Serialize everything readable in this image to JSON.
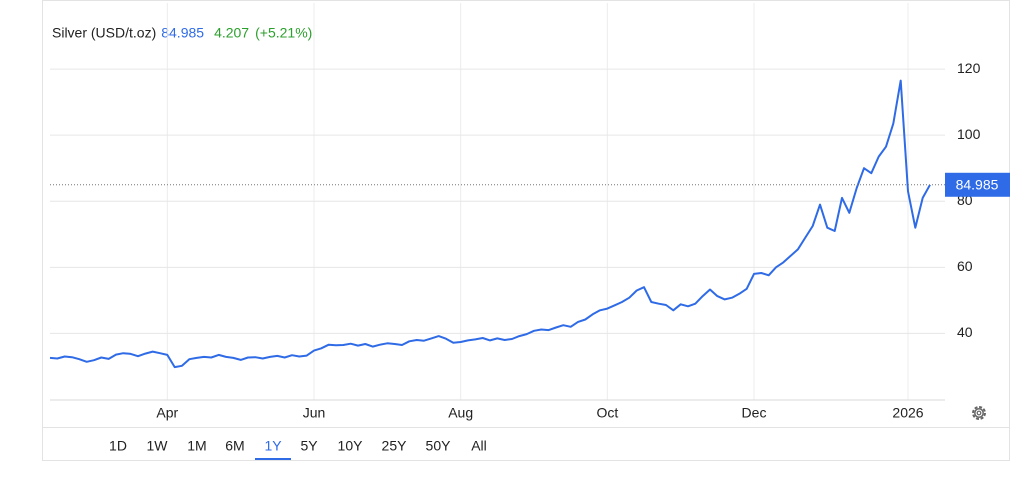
{
  "chart_data": {
    "type": "line",
    "title": "Silver (USD/t.oz)",
    "change": 4.207,
    "change_label": "(+5.21%)",
    "categories": [
      null,
      null,
      null,
      null,
      null,
      null,
      null,
      null,
      null,
      null,
      null,
      null,
      null,
      null,
      null,
      null,
      "Apr",
      null,
      null,
      null,
      null,
      null,
      null,
      null,
      null,
      null,
      null,
      null,
      null,
      null,
      null,
      null,
      null,
      null,
      null,
      null,
      "Jun",
      null,
      null,
      null,
      null,
      null,
      null,
      null,
      null,
      null,
      null,
      null,
      null,
      null,
      null,
      null,
      null,
      null,
      null,
      null,
      "Aug",
      null,
      null,
      null,
      null,
      null,
      null,
      null,
      null,
      null,
      null,
      null,
      null,
      null,
      null,
      null,
      null,
      null,
      null,
      null,
      "Oct",
      null,
      null,
      null,
      null,
      null,
      null,
      null,
      null,
      null,
      null,
      null,
      null,
      null,
      null,
      null,
      null,
      null,
      null,
      null,
      "Dec",
      null,
      null,
      null,
      null,
      null,
      null,
      null,
      null,
      null,
      null,
      null,
      null,
      null,
      null,
      null,
      null,
      null,
      null,
      null,
      null,
      "2026",
      null,
      null,
      null
    ],
    "series": [
      {
        "name": "Silver",
        "color": "#2f6be6",
        "values": [
          32.6,
          32.4,
          33.0,
          32.8,
          32.2,
          31.4,
          31.9,
          32.7,
          32.3,
          33.6,
          34.0,
          33.8,
          33.1,
          33.9,
          34.5,
          34.0,
          33.5,
          29.8,
          30.2,
          32.2,
          32.6,
          32.9,
          32.7,
          33.5,
          32.9,
          32.6,
          32.0,
          32.7,
          32.8,
          32.4,
          32.9,
          33.2,
          32.7,
          33.4,
          33.0,
          33.3,
          34.8,
          35.5,
          36.6,
          36.4,
          36.5,
          36.9,
          36.3,
          36.8,
          36.0,
          36.6,
          37.0,
          36.8,
          36.5,
          37.6,
          38.0,
          37.8,
          38.5,
          39.2,
          38.4,
          37.2,
          37.4,
          37.9,
          38.2,
          38.6,
          37.9,
          38.5,
          38.0,
          38.3,
          39.2,
          39.8,
          40.8,
          41.2,
          41.0,
          41.8,
          42.5,
          42.0,
          43.5,
          44.2,
          45.8,
          47.0,
          47.5,
          48.5,
          49.5,
          50.8,
          53.0,
          54.0,
          49.5,
          49.0,
          48.6,
          47.0,
          48.8,
          48.2,
          49.0,
          51.3,
          53.3,
          51.3,
          50.3,
          50.8,
          52.0,
          53.5,
          58.0,
          58.3,
          57.6,
          60.0,
          61.5,
          63.5,
          65.5,
          69.0,
          72.5,
          79.0,
          72.0,
          71.0,
          81.0,
          76.5,
          84.0,
          90.0,
          88.5,
          93.5,
          96.5,
          103.5,
          116.5,
          83.0,
          72.0,
          81.0,
          84.985
        ]
      }
    ],
    "ylim": [
      20,
      140
    ],
    "yticks": [
      40,
      60,
      80,
      100,
      120
    ],
    "grid": true,
    "ranges": [
      "1D",
      "1W",
      "1M",
      "6M",
      "1Y",
      "5Y",
      "10Y",
      "25Y",
      "50Y",
      "All"
    ],
    "active_range": 4
  }
}
